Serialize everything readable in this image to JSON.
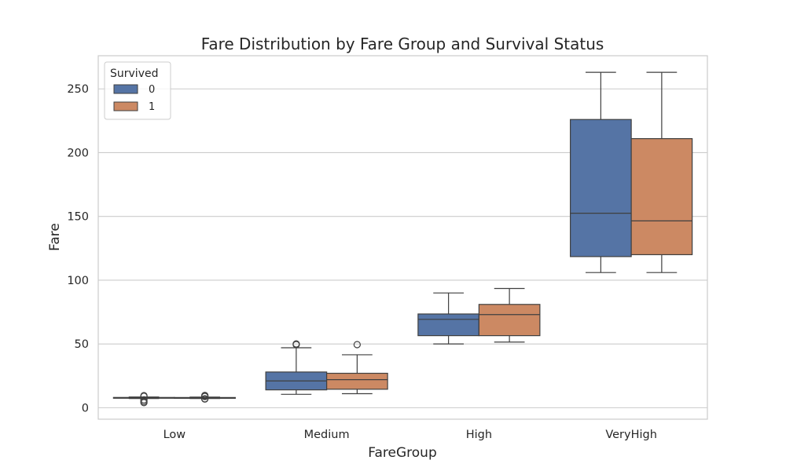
{
  "chart_data": {
    "type": "boxplot",
    "title": "Fare Distribution by Fare Group and Survival Status",
    "xlabel": "FareGroup",
    "ylabel": "Fare",
    "categories": [
      "Low",
      "Medium",
      "High",
      "VeryHigh"
    ],
    "ylim": [
      -9,
      276
    ],
    "yticks": [
      0,
      50,
      100,
      150,
      200,
      250
    ],
    "grid": true,
    "legend": {
      "title": "Survived",
      "position": "top-left"
    },
    "series": [
      {
        "name": "0",
        "color": "#5574a5",
        "boxes": [
          {
            "whislo": 7.2,
            "q1": 7.75,
            "med": 7.9,
            "q3": 8.05,
            "whishi": 8.4,
            "fliers": [
              4.0,
              5.0,
              6.2,
              9.0,
              9.5
            ]
          },
          {
            "whislo": 10.5,
            "q1": 14.0,
            "med": 21.0,
            "q3": 28.0,
            "whishi": 47.0,
            "fliers": [
              49.5,
              50.0
            ]
          },
          {
            "whislo": 50.0,
            "q1": 56.5,
            "med": 69.3,
            "q3": 73.5,
            "whishi": 90.0,
            "fliers": []
          },
          {
            "whislo": 106.0,
            "q1": 118.5,
            "med": 152.5,
            "q3": 226.0,
            "whishi": 263.0,
            "fliers": []
          }
        ]
      },
      {
        "name": "1",
        "color": "#cc8963",
        "boxes": [
          {
            "whislo": 7.2,
            "q1": 7.7,
            "med": 7.85,
            "q3": 8.0,
            "whishi": 8.3,
            "fliers": [
              6.8,
              7.0,
              8.8,
              9.2,
              9.6
            ]
          },
          {
            "whislo": 11.0,
            "q1": 14.5,
            "med": 22.0,
            "q3": 27.0,
            "whishi": 41.5,
            "fliers": [
              49.5
            ]
          },
          {
            "whislo": 51.5,
            "q1": 56.5,
            "med": 73.0,
            "q3": 81.0,
            "whishi": 93.5,
            "fliers": []
          },
          {
            "whislo": 106.0,
            "q1": 120.0,
            "med": 146.5,
            "q3": 211.0,
            "whishi": 263.0,
            "fliers": []
          }
        ]
      }
    ]
  }
}
